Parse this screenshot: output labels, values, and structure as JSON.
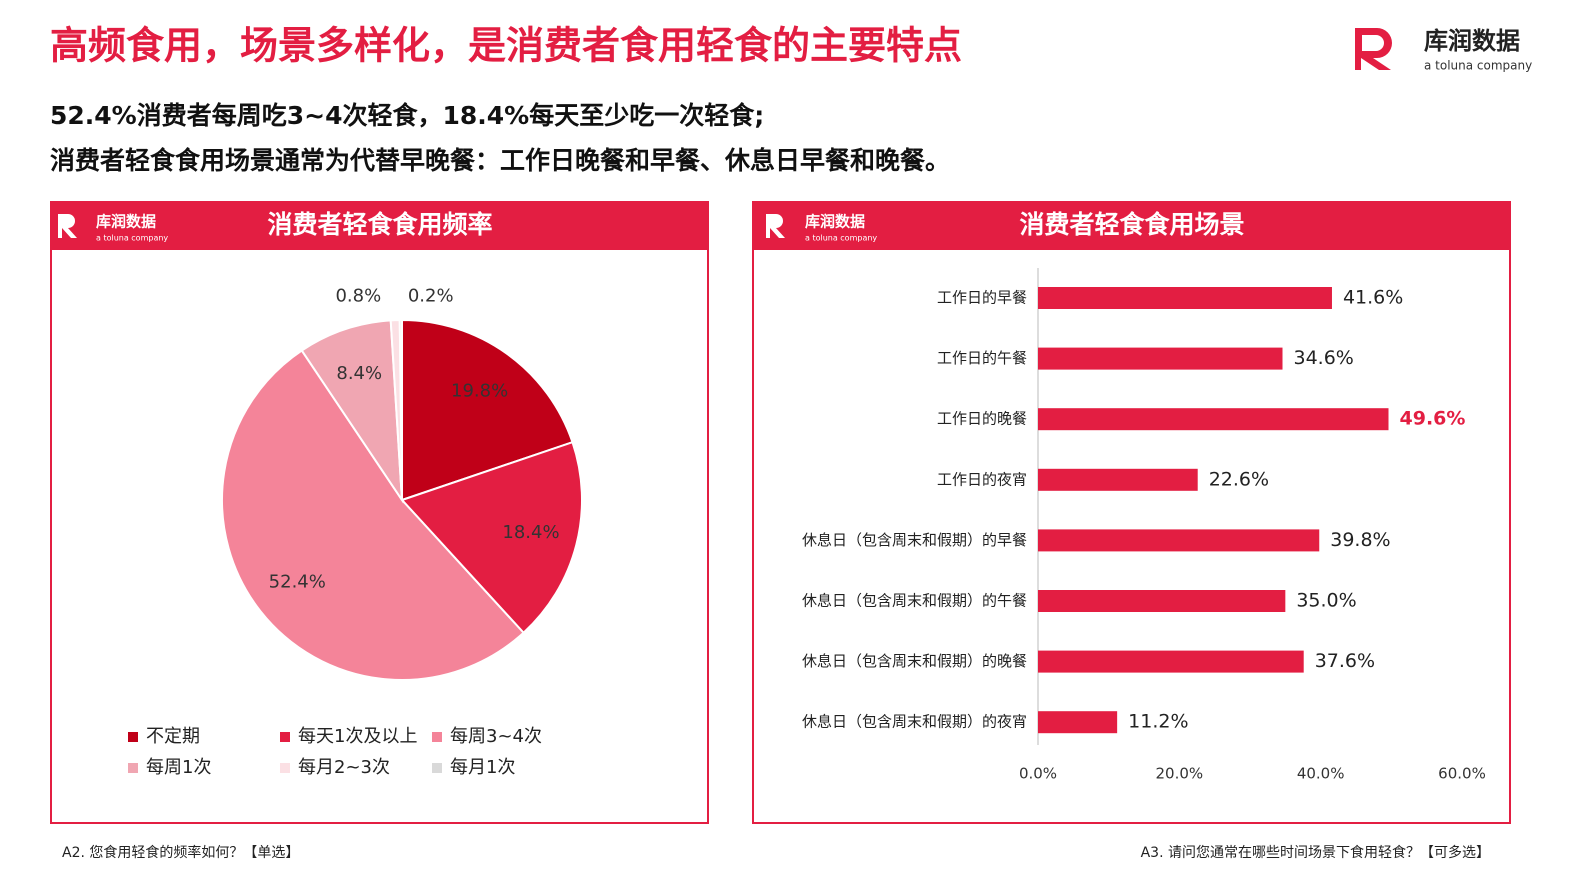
{
  "header": {
    "title": "高频食用，场景多样化，是消费者食用轻食的主要特点",
    "lines": [
      "52.4%消费者每周吃3~4次轻食，18.4%每天至少吃一次轻食;",
      "消费者轻食食用场景通常为代替早晚餐：工作日晚餐和早餐、休息日早餐和晚餐。"
    ]
  },
  "logo": {
    "name": "库润数据",
    "tagline": "a toluna company"
  },
  "chart_data": [
    {
      "type": "pie",
      "title": "消费者轻食食用频率",
      "categories": [
        "不定期",
        "每天1次及以上",
        "每周3~4次",
        "每周1次",
        "每月2~3次",
        "每月1次"
      ],
      "values": [
        19.8,
        18.4,
        52.4,
        8.4,
        0.8,
        0.2
      ],
      "value_labels": [
        "19.8%",
        "18.4%",
        "52.4%",
        "8.4%",
        "0.8%",
        "0.2%"
      ],
      "colors": [
        "#c00018",
        "#e31e42",
        "#f48499",
        "#f0a6b2",
        "#fbe0e4",
        "#d9d9d9"
      ]
    },
    {
      "type": "hbar",
      "title": "消费者轻食食用场景",
      "categories": [
        "工作日的早餐",
        "工作日的午餐",
        "工作日的晚餐",
        "工作日的夜宵",
        "休息日（包含周末和假期）的早餐",
        "休息日（包含周末和假期）的午餐",
        "休息日（包含周末和假期）的晚餐",
        "休息日（包含周末和假期）的夜宵"
      ],
      "values": [
        41.6,
        34.6,
        49.6,
        22.6,
        39.8,
        35.0,
        37.6,
        11.2
      ],
      "value_labels": [
        "41.6%",
        "34.6%",
        "49.6%",
        "22.6%",
        "39.8%",
        "35.0%",
        "37.6%",
        "11.2%"
      ],
      "value_label_colors": [
        "#222222",
        "#222222",
        "#e31e42",
        "#222222",
        "#222222",
        "#222222",
        "#222222",
        "#222222"
      ],
      "color": "#e31e42",
      "xlim": [
        0,
        60
      ],
      "xticks": [
        {
          "value": 0,
          "label": "0.0%"
        },
        {
          "value": 20,
          "label": "20.0%"
        },
        {
          "value": 40,
          "label": "40.0%"
        },
        {
          "value": 60,
          "label": "60.0%"
        }
      ]
    }
  ],
  "footnotes": [
    "A2. 您食用轻食的频率如何？【单选】",
    "A3. 请问您通常在哪些时间场景下食用轻食？【可多选】"
  ]
}
